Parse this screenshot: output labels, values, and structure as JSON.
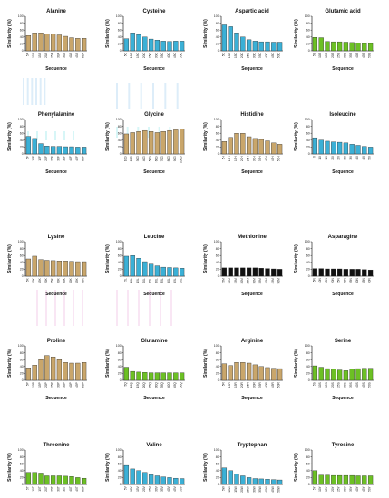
{
  "figure": {
    "colors": {
      "tan": "#c9a66b",
      "blue": "#3bb0d6",
      "green": "#6cc024",
      "red": "#d9471c",
      "gray": "#b5b5b5",
      "black": "#111111"
    }
  },
  "chart_data": [
    {
      "type": "bar",
      "title": "Alanine",
      "ylabel": "Similarity (%)",
      "xlabel": "Sequence",
      "ylim": [
        0,
        100
      ],
      "color": "tan",
      "categories": [
        "5A",
        "10A",
        "15A",
        "20A",
        "25A",
        "30A",
        "35A",
        "40A",
        "45A",
        "50A"
      ],
      "values": [
        44,
        52,
        52,
        49,
        48,
        46,
        42,
        38,
        36,
        36
      ]
    },
    {
      "type": "bar",
      "title": "Cysteine",
      "ylabel": "Similarity (%)",
      "xlabel": "Sequence",
      "ylim": [
        0,
        100
      ],
      "color": "blue",
      "categories": [
        "5C",
        "10C",
        "15C",
        "20C",
        "25C",
        "30C",
        "35C",
        "40C",
        "45C",
        "50C"
      ],
      "values": [
        35,
        52,
        47,
        40,
        34,
        31,
        28,
        27,
        28,
        28
      ]
    },
    {
      "type": "bar",
      "title": "Aspartic acid",
      "ylabel": "Similarity (%)",
      "xlabel": "Sequence",
      "ylim": [
        0,
        100
      ],
      "color": "blue",
      "categories": [
        "5D",
        "10D",
        "15D",
        "20D",
        "25D",
        "30D",
        "35D",
        "40D",
        "45D",
        "50D"
      ],
      "values": [
        75,
        70,
        52,
        40,
        32,
        28,
        26,
        26,
        25,
        25
      ]
    },
    {
      "type": "bar",
      "title": "Glutamic acid",
      "ylabel": "Similarity (%)",
      "xlabel": "Sequence",
      "ylim": [
        0,
        100
      ],
      "color": "green",
      "categories": [
        "5E",
        "10E",
        "15E",
        "20E",
        "25E",
        "30E",
        "35E",
        "40E",
        "45E",
        "50E"
      ],
      "values": [
        39,
        38,
        27,
        26,
        26,
        25,
        24,
        22,
        21,
        21
      ]
    },
    {
      "type": "bar",
      "title": "Phenylalanine",
      "ylabel": "Similarity (%)",
      "xlabel": "Sequence",
      "ylim": [
        0,
        100
      ],
      "color": "blue",
      "categories": [
        "5F",
        "10F",
        "15F",
        "20F",
        "25F",
        "30F",
        "35F",
        "40F",
        "45F",
        "50F"
      ],
      "values": [
        51,
        45,
        30,
        23,
        22,
        22,
        21,
        21,
        20,
        20
      ]
    },
    {
      "type": "bar",
      "title": "Glycine",
      "ylabel": "Similarity (%)",
      "xlabel": "Sequence",
      "ylim": [
        0,
        100
      ],
      "color": "tan",
      "categories": [
        "10G",
        "20G",
        "30G",
        "40G",
        "50G",
        "60G",
        "70G",
        "80G",
        "90G",
        "100G"
      ],
      "values": [
        58,
        62,
        65,
        68,
        65,
        62,
        65,
        68,
        70,
        72
      ]
    },
    {
      "type": "bar",
      "title": "Histidine",
      "ylabel": "Similarity (%)",
      "xlabel": "Sequence",
      "ylim": [
        0,
        100
      ],
      "color": "tan",
      "categories": [
        "5H",
        "10H",
        "15H",
        "20H",
        "25H",
        "30H",
        "35H",
        "40H",
        "45H",
        "50H"
      ],
      "values": [
        36,
        48,
        60,
        60,
        50,
        45,
        42,
        38,
        32,
        28
      ]
    },
    {
      "type": "bar",
      "title": "Isoleucine",
      "ylabel": "Similarity (%)",
      "xlabel": "Sequence",
      "ylim": [
        0,
        100
      ],
      "color": "blue",
      "categories": [
        "5I",
        "10I",
        "15I",
        "20I",
        "25I",
        "30I",
        "35I",
        "40I",
        "45I",
        "50I"
      ],
      "values": [
        47,
        40,
        37,
        35,
        34,
        32,
        28,
        25,
        22,
        20
      ]
    },
    {
      "type": "bar",
      "title": "Lysine",
      "ylabel": "Similarity (%)",
      "xlabel": "Sequence",
      "ylim": [
        0,
        100
      ],
      "color": "tan",
      "categories": [
        "5K",
        "10K",
        "15K",
        "20K",
        "25K",
        "30K",
        "35K",
        "40K",
        "45K",
        "50K"
      ],
      "values": [
        50,
        58,
        48,
        46,
        45,
        44,
        44,
        43,
        42,
        42
      ]
    },
    {
      "type": "bar",
      "title": "Leucine",
      "ylabel": "Similarity (%)",
      "xlabel": "Sequence",
      "ylim": [
        0,
        100
      ],
      "color": "blue",
      "categories": [
        "5L",
        "10L",
        "15L",
        "20L",
        "25L",
        "30L",
        "35L",
        "40L",
        "45L",
        "50L"
      ],
      "values": [
        58,
        60,
        52,
        42,
        35,
        30,
        26,
        25,
        24,
        23
      ]
    },
    {
      "type": "bar",
      "title": "Methionine",
      "ylabel": "Similarity (%)",
      "xlabel": "Sequence",
      "ylim": [
        0,
        100
      ],
      "color": "black",
      "categories": [
        "5M",
        "10M",
        "15M",
        "20M",
        "25M",
        "30M",
        "35M",
        "40M",
        "45M",
        "50M"
      ],
      "values": [
        24,
        24,
        24,
        24,
        24,
        24,
        23,
        22,
        21,
        20
      ]
    },
    {
      "type": "bar",
      "title": "Asparagine",
      "ylabel": "Similarity (%)",
      "xlabel": "Sequence",
      "ylim": [
        0,
        100
      ],
      "color": "black",
      "categories": [
        "5N",
        "10N",
        "15N",
        "20N",
        "25N",
        "30N",
        "35N",
        "40N",
        "45N",
        "50N"
      ],
      "values": [
        22,
        22,
        21,
        21,
        21,
        20,
        20,
        20,
        19,
        18
      ]
    },
    {
      "type": "bar",
      "title": "Proline",
      "ylabel": "Similarity (%)",
      "xlabel": "Sequence",
      "ylim": [
        0,
        100
      ],
      "color": "tan",
      "categories": [
        "5P",
        "10P",
        "15P",
        "20P",
        "25P",
        "30P",
        "35P",
        "40P",
        "45P",
        "50P"
      ],
      "values": [
        36,
        44,
        60,
        72,
        68,
        60,
        52,
        50,
        50,
        52
      ]
    },
    {
      "type": "bar",
      "title": "Glutamine",
      "ylabel": "Similarity (%)",
      "xlabel": "Sequence",
      "ylim": [
        0,
        100
      ],
      "color": "green",
      "categories": [
        "5Q",
        "10Q",
        "15Q",
        "20Q",
        "25Q",
        "30Q",
        "35Q",
        "40Q",
        "45Q",
        "50Q"
      ],
      "values": [
        38,
        26,
        24,
        23,
        22,
        22,
        22,
        22,
        22,
        22
      ]
    },
    {
      "type": "bar",
      "title": "Arginine",
      "ylabel": "Similarity (%)",
      "xlabel": "Sequence",
      "ylim": [
        0,
        100
      ],
      "color": "tan",
      "categories": [
        "5R",
        "10R",
        "15R",
        "20R",
        "25R",
        "30R",
        "35R",
        "40R",
        "45R",
        "50R"
      ],
      "values": [
        48,
        43,
        52,
        52,
        50,
        45,
        40,
        37,
        35,
        34
      ]
    },
    {
      "type": "bar",
      "title": "Serine",
      "ylabel": "Similarity (%)",
      "xlabel": "Sequence",
      "ylim": [
        0,
        100
      ],
      "color": "green",
      "categories": [
        "5S",
        "10S",
        "15S",
        "20S",
        "25S",
        "30S",
        "35S",
        "40S",
        "45S",
        "50S"
      ],
      "values": [
        42,
        38,
        34,
        32,
        30,
        28,
        32,
        34,
        35,
        35
      ]
    },
    {
      "type": "bar",
      "title": "Threonine",
      "ylabel": "Similarity (%)",
      "xlabel": "Sequence",
      "ylim": [
        0,
        100
      ],
      "color": "green",
      "categories": [
        "5T",
        "10T",
        "15T",
        "20T",
        "25T",
        "30T",
        "35T",
        "40T",
        "45T",
        "50T"
      ],
      "values": [
        35,
        35,
        33,
        25,
        25,
        25,
        24,
        23,
        20,
        18
      ]
    },
    {
      "type": "bar",
      "title": "Valine",
      "ylabel": "Similarity (%)",
      "xlabel": "Sequence",
      "ylim": [
        0,
        100
      ],
      "color": "blue",
      "categories": [
        "5V",
        "10V",
        "15V",
        "20V",
        "25V",
        "30V",
        "35V",
        "40V",
        "45V",
        "50V"
      ],
      "values": [
        55,
        45,
        40,
        35,
        28,
        25,
        22,
        20,
        18,
        17
      ]
    },
    {
      "type": "bar",
      "title": "Tryptophan",
      "ylabel": "Similarity (%)",
      "xlabel": "Sequence",
      "ylim": [
        0,
        100
      ],
      "color": "blue",
      "categories": [
        "5W",
        "10W",
        "15W",
        "20W",
        "25W",
        "30W",
        "35W",
        "40W",
        "45W",
        "50W"
      ],
      "values": [
        48,
        40,
        30,
        25,
        20,
        17,
        16,
        15,
        14,
        13
      ]
    },
    {
      "type": "bar",
      "title": "Tyrosine",
      "ylabel": "Similarity (%)",
      "xlabel": "Sequence",
      "ylim": [
        0,
        100
      ],
      "color": "green",
      "categories": [
        "5Y",
        "10Y",
        "15Y",
        "20Y",
        "25Y",
        "30Y",
        "35Y",
        "40Y",
        "45Y",
        "50Y"
      ],
      "values": [
        40,
        27,
        27,
        26,
        26,
        26,
        26,
        25,
        25,
        25
      ]
    }
  ]
}
